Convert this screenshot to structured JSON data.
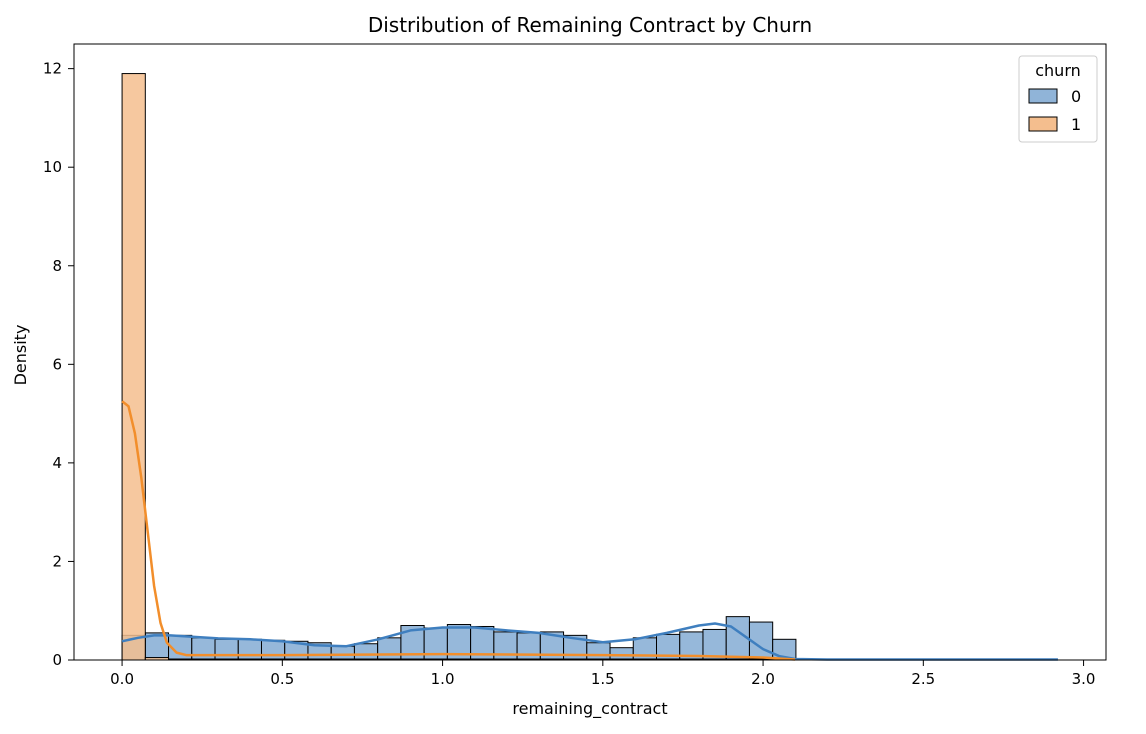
{
  "chart_data": {
    "type": "histogram",
    "title": "Distribution of Remaining Contract by Churn",
    "xlabel": "remaining_contract",
    "ylabel": "Density",
    "xlim": [
      -0.15,
      3.07
    ],
    "ylim": [
      0,
      12.5
    ],
    "xticks": [
      0.0,
      0.5,
      1.0,
      1.5,
      2.0,
      2.5,
      3.0
    ],
    "xtick_labels": [
      "0.0",
      "0.5",
      "1.0",
      "1.5",
      "2.0",
      "2.5",
      "3.0"
    ],
    "yticks": [
      0,
      2,
      4,
      6,
      8,
      10,
      12
    ],
    "ytick_labels": [
      "0",
      "2",
      "4",
      "6",
      "8",
      "10",
      "12"
    ],
    "grid": false,
    "bins": {
      "start": 0.0,
      "width": 0.0725,
      "count": 40
    },
    "legend": {
      "title": "churn",
      "position": "top-right",
      "entries": [
        {
          "label": "0",
          "color": "#4c8dc6",
          "fill": "#90b4d8"
        },
        {
          "label": "1",
          "color": "#f28e2b",
          "fill": "#f4be8e"
        }
      ]
    },
    "series": [
      {
        "name": "0",
        "color": "#3f7fbf",
        "fill": "#90b4d8",
        "bar_heights": [
          0.5,
          0.55,
          0.5,
          0.45,
          0.42,
          0.42,
          0.4,
          0.38,
          0.35,
          0.28,
          0.33,
          0.45,
          0.7,
          0.65,
          0.72,
          0.68,
          0.57,
          0.55,
          0.57,
          0.5,
          0.35,
          0.25,
          0.45,
          0.52,
          0.57,
          0.62,
          0.88,
          0.77,
          0.42,
          0,
          0,
          0,
          0,
          0,
          0,
          0,
          0,
          0,
          0,
          0.02
        ],
        "kde_x": [
          0.0,
          0.05,
          0.1,
          0.15,
          0.2,
          0.3,
          0.4,
          0.5,
          0.6,
          0.7,
          0.8,
          0.9,
          1.0,
          1.1,
          1.2,
          1.3,
          1.4,
          1.5,
          1.6,
          1.7,
          1.8,
          1.85,
          1.9,
          1.95,
          2.0,
          2.05,
          2.1,
          2.2,
          2.5,
          2.92
        ],
        "kde_y": [
          0.38,
          0.45,
          0.5,
          0.5,
          0.48,
          0.44,
          0.42,
          0.38,
          0.3,
          0.28,
          0.42,
          0.6,
          0.66,
          0.66,
          0.6,
          0.55,
          0.45,
          0.36,
          0.42,
          0.55,
          0.7,
          0.74,
          0.68,
          0.45,
          0.22,
          0.08,
          0.02,
          0.01,
          0.01,
          0.01
        ]
      },
      {
        "name": "1",
        "color": "#f28e2b",
        "fill": "#f4be8e",
        "bar_heights": [
          11.9,
          0.05,
          0.02,
          0.02,
          0.02,
          0.02,
          0.02,
          0.02,
          0.02,
          0.02,
          0.02,
          0.02,
          0.02,
          0.02,
          0.02,
          0.02,
          0.02,
          0.02,
          0.02,
          0.02,
          0.02,
          0.02,
          0.02,
          0.02,
          0.02,
          0.02,
          0.02,
          0.02,
          0.02,
          0,
          0,
          0,
          0,
          0,
          0,
          0,
          0,
          0,
          0,
          0
        ],
        "kde_x": [
          0.0,
          0.02,
          0.04,
          0.06,
          0.08,
          0.1,
          0.12,
          0.14,
          0.17,
          0.2,
          0.3,
          0.5,
          1.0,
          1.5,
          1.8,
          2.0,
          2.1
        ],
        "kde_y": [
          5.25,
          5.15,
          4.6,
          3.7,
          2.6,
          1.5,
          0.75,
          0.35,
          0.15,
          0.1,
          0.1,
          0.1,
          0.12,
          0.1,
          0.08,
          0.05,
          0.01
        ]
      }
    ]
  }
}
